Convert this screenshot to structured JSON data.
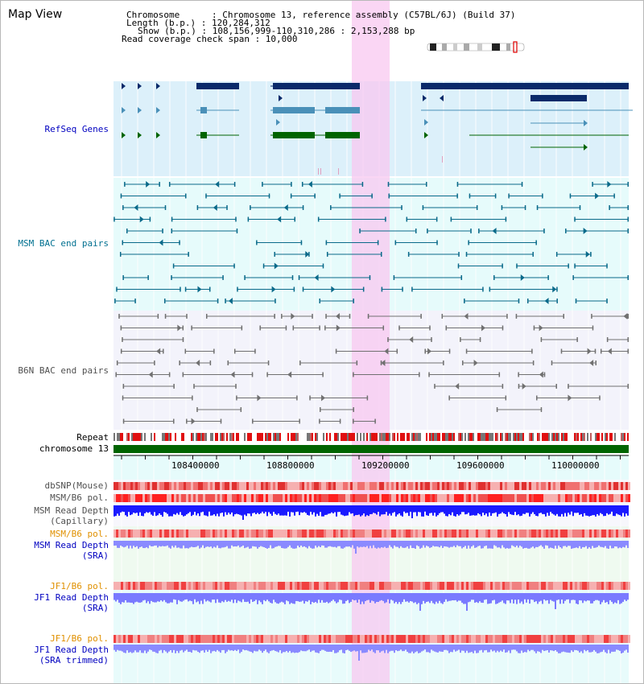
{
  "title": "Map View",
  "info": {
    "chromosome_label": "Chromosome      : Chromosome 13, reference assembly (C57BL/6J) (Build 37)",
    "length_label": "Length (b.p.) : 120,284,312",
    "show_label": "Show (b.p.) : 108,156,999-110,310,286 : 2,153,288 bp",
    "coverage_label": "Read coverage check span : 10,000"
  },
  "tracks": {
    "refseq": "RefSeq Genes",
    "msm_bac": "MSM BAC end pairs",
    "b6n_bac": "B6N BAC end pairs",
    "repeat": "Repeat",
    "chromosome": "chromosome 13",
    "dbsnp": "dbSNP(Mouse)",
    "msm_b6_pol_1": "MSM/B6 pol.",
    "msm_depth_cap_1": "MSM Read Depth",
    "msm_depth_cap_2": "(Capillary)",
    "msm_b6_pol_2": "MSM/B6 pol.",
    "msm_depth_sra_1": "MSM Read Depth",
    "msm_depth_sra_2": "(SRA)",
    "jf1_b6_pol_1": "JF1/B6 pol.",
    "jf1_depth_sra_1": "JF1 Read Depth",
    "jf1_depth_sra_2": "(SRA)",
    "jf1_b6_pol_2": "JF1/B6 pol.",
    "jf1_depth_trim_1": "JF1 Read Depth",
    "jf1_depth_trim_2": "(SRA trimmed)"
  },
  "axis": {
    "ticks": [
      "108400000",
      "108800000",
      "109200000",
      "109600000",
      "110000000"
    ]
  },
  "colors": {
    "refseq_label": "#0000c0",
    "msm_label": "#007090",
    "b6n_label": "#505050",
    "depth_label": "#0000c0",
    "jf1_pol_label": "#e09000",
    "highlight": "#f8c8f0",
    "chromosome_bar": "#006400"
  }
}
